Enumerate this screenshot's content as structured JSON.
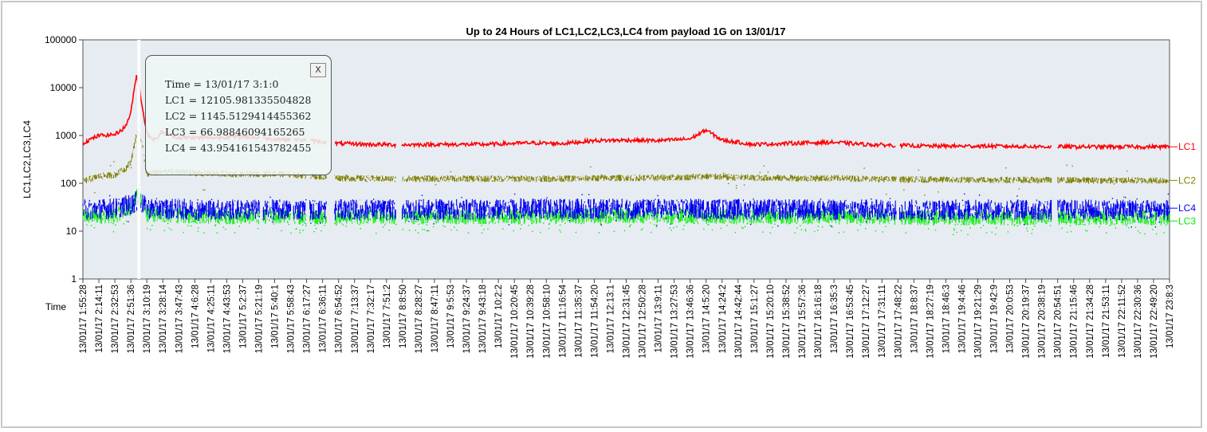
{
  "colors": {
    "LC1": "#ff0000",
    "LC2": "#808000",
    "LC3": "#00ee00",
    "LC4": "#0000ee",
    "plot_background": "#e7ecf3",
    "hover_line": "#ffffff"
  },
  "tooltip": {
    "close_label": "X",
    "time": "Time = 13/01/17 3:1:0",
    "lc1": "LC1 = 12105.981335504828",
    "lc2": "LC2 = 1145.5129414455362",
    "lc3": "LC3 = 66.98846094165265",
    "lc4": "LC4 = 43.954161543782455"
  },
  "chart_data": {
    "type": "line",
    "title": "Up to 24 Hours of LC1,LC2,LC3,LC4 from payload 1G on 13/01/17",
    "xlabel": "Time",
    "ylabel": "LC1,LC2,LC3,LC4",
    "y_scale": "log",
    "ylim": [
      1,
      100000
    ],
    "y_ticks": [
      "1",
      "10",
      "100",
      "1000",
      "10000",
      "100000"
    ],
    "x_range": [
      "1:55:28",
      "23:8:3"
    ],
    "x_ticks": [
      "13/01/17 1:55:28",
      "13/01/17 2:14:11",
      "13/01/17 2:32:53",
      "13/01/17 2:51:36",
      "13/01/17 3:10:19",
      "13/01/17 3:28:14",
      "13/01/17 3:47:43",
      "13/01/17 4:6:28",
      "13/01/17 4:25:11",
      "13/01/17 4:43:53",
      "13/01/17 5:2:37",
      "13/01/17 5:21:19",
      "13/01/17 5:40:1",
      "13/01/17 5:58:43",
      "13/01/17 6:17:27",
      "13/01/17 6:36:11",
      "13/01/17 6:54:52",
      "13/01/17 7:13:37",
      "13/01/17 7:32:17",
      "13/01/17 7:51:2",
      "13/01/17 8:8:50",
      "13/01/17 8:28:27",
      "13/01/17 8:47:11",
      "13/01/17 9:5:53",
      "13/01/17 9:24:37",
      "13/01/17 9:43:18",
      "13/01/17 10:2:2",
      "13/01/17 10:20:45",
      "13/01/17 10:39:28",
      "13/01/17 10:58:10",
      "13/01/17 11:16:54",
      "13/01/17 11:35:37",
      "13/01/17 11:54:20",
      "13/01/17 12:13:1",
      "13/01/17 12:31:45",
      "13/01/17 12:50:28",
      "13/01/17 13:9:11",
      "13/01/17 13:27:53",
      "13/01/17 13:46:36",
      "13/01/17 14:5:20",
      "13/01/17 14:24:2",
      "13/01/17 14:42:44",
      "13/01/17 15:1:27",
      "13/01/17 15:20:10",
      "13/01/17 15:38:52",
      "13/01/17 15:57:36",
      "13/01/17 16:16:18",
      "13/01/17 16:35:3",
      "13/01/17 16:53:45",
      "13/01/17 17:12:27",
      "13/01/17 17:31:11",
      "13/01/17 17:48:22",
      "13/01/17 18:8:37",
      "13/01/17 18:27:19",
      "13/01/17 18:46:3",
      "13/01/17 19:4:46",
      "13/01/17 19:21:29",
      "13/01/17 19:42:9",
      "13/01/17 20:0:53",
      "13/01/17 20:19:37",
      "13/01/17 20:38:19",
      "13/01/17 20:54:51",
      "13/01/17 21:15:46",
      "13/01/17 21:34:28",
      "13/01/17 21:53:11",
      "13/01/17 22:11:52",
      "13/01/17 22:30:36",
      "13/01/17 22:49:20",
      "13/01/17 23:8:3"
    ],
    "series": [
      {
        "name": "LC1",
        "color": "#ff0000",
        "x": [
          "1:55:28",
          "2:14:11",
          "2:32:53",
          "2:45:00",
          "2:51:36",
          "2:58:00",
          "3:01:00",
          "3:05:00",
          "3:10:19",
          "3:20:00",
          "3:28:14",
          "3:47:43",
          "4:25:11",
          "5:2:37",
          "5:40:1",
          "6:17:27",
          "6:54:52",
          "7:32:17",
          "8:8:50",
          "8:47:11",
          "9:43:18",
          "10:39:28",
          "11:16:54",
          "11:54:20",
          "12:31:45",
          "13:09:11",
          "13:46:36",
          "14:05:20",
          "14:24:02",
          "15:01:27",
          "15:57:36",
          "16:35:03",
          "17:12:27",
          "17:48:22",
          "18:27:19",
          "19:04:46",
          "19:42:09",
          "20:19:37",
          "20:54:51",
          "21:34:28",
          "22:11:52",
          "22:49:20",
          "23:08:03"
        ],
        "values": [
          700,
          1000,
          1050,
          1500,
          3000,
          18000,
          12106,
          4000,
          1100,
          800,
          1200,
          900,
          900,
          950,
          850,
          800,
          680,
          650,
          640,
          650,
          650,
          700,
          680,
          780,
          800,
          780,
          850,
          1300,
          800,
          650,
          700,
          720,
          650,
          620,
          600,
          600,
          600,
          590,
          580,
          580,
          580,
          580,
          580
        ]
      },
      {
        "name": "LC2",
        "color": "#808000",
        "x": [
          "1:55:28",
          "2:14:11",
          "2:32:53",
          "2:45:00",
          "2:51:36",
          "2:58:00",
          "3:01:00",
          "3:05:00",
          "3:10:19",
          "3:28:14",
          "3:47:43",
          "4:25:11",
          "5:2:37",
          "5:40:1",
          "6:17:27",
          "6:54:52",
          "7:32:17",
          "8:8:50",
          "8:47:11",
          "9:43:18",
          "10:39:28",
          "11:16:54",
          "11:54:20",
          "12:31:45",
          "13:09:11",
          "13:46:36",
          "14:05:20",
          "14:24:02",
          "15:01:27",
          "15:57:36",
          "16:35:03",
          "17:12:27",
          "17:48:22",
          "18:27:19",
          "19:04:46",
          "19:42:09",
          "20:19:37",
          "20:54:51",
          "21:34:28",
          "22:11:52",
          "22:49:20",
          "23:08:03"
        ],
        "values": [
          110,
          140,
          150,
          200,
          280,
          1000,
          1146,
          600,
          160,
          175,
          170,
          160,
          155,
          160,
          145,
          130,
          125,
          125,
          125,
          125,
          125,
          125,
          128,
          130,
          130,
          135,
          140,
          135,
          130,
          128,
          128,
          125,
          120,
          120,
          118,
          118,
          118,
          117,
          115,
          115,
          115,
          115
        ]
      },
      {
        "name": "LC3",
        "color": "#00ee00",
        "x": [
          "1:55:28",
          "2:32:53",
          "2:51:36",
          "3:01:00",
          "3:10:19",
          "4:25:11",
          "6:54:52",
          "8:8:50",
          "10:39:28",
          "12:31:45",
          "14:24:02",
          "16:35:03",
          "18:27:19",
          "20:54:51",
          "23:08:03"
        ],
        "values": [
          20,
          21,
          30,
          67,
          22,
          20,
          20,
          20,
          20,
          21,
          20,
          20,
          19,
          19,
          19
        ]
      },
      {
        "name": "LC4",
        "color": "#0000ee",
        "x": [
          "1:55:28",
          "2:32:53",
          "2:51:36",
          "3:01:00",
          "3:10:19",
          "4:25:11",
          "6:54:52",
          "8:8:50",
          "10:39:28",
          "12:31:45",
          "14:24:02",
          "16:35:03",
          "18:27:19",
          "20:54:51",
          "23:08:03"
        ],
        "values": [
          28,
          30,
          36,
          44,
          30,
          28,
          28,
          28,
          29,
          29,
          29,
          28,
          28,
          28,
          28
        ]
      }
    ],
    "data_gaps": [
      [
        "5:22:00",
        "5:26:00"
      ],
      [
        "5:59:00",
        "6:02:00"
      ],
      [
        "6:17:00",
        "6:21:00"
      ],
      [
        "6:41:00",
        "6:50:00"
      ],
      [
        "8:02:00",
        "8:09:00"
      ],
      [
        "17:48:00",
        "17:52:00"
      ],
      [
        "20:50:00",
        "20:57:00"
      ]
    ],
    "hover_time": "3:01:00",
    "grid": false,
    "legend": "line-end labels right"
  }
}
